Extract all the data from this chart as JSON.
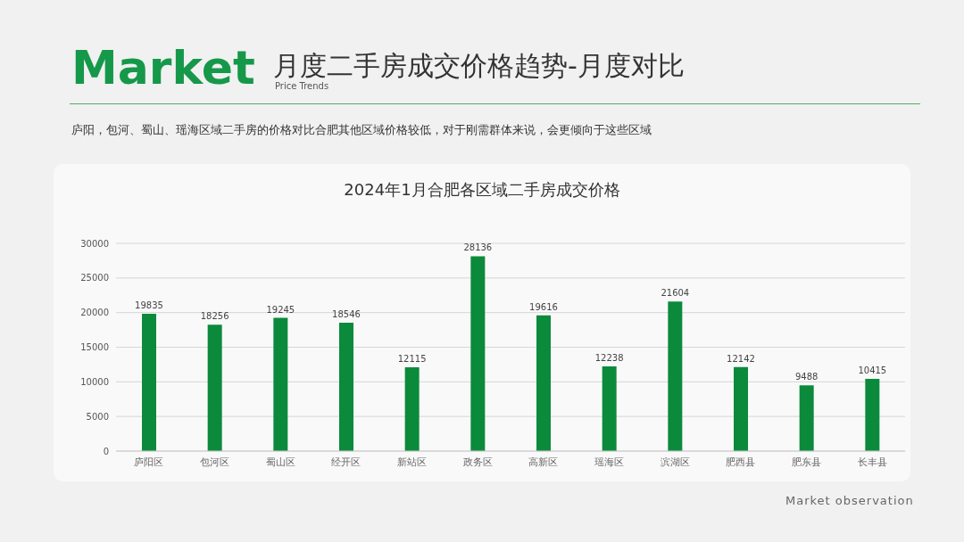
{
  "chart_data": {
    "type": "bar",
    "title": "2024年1月合肥各区域二手房成交价格",
    "categories": [
      "庐阳区",
      "包河区",
      "蜀山区",
      "经开区",
      "新站区",
      "政务区",
      "高新区",
      "瑶海区",
      "滨湖区",
      "肥西县",
      "肥东县",
      "长丰县"
    ],
    "values": [
      19835,
      18256,
      19245,
      18546,
      12115,
      28136,
      19616,
      12238,
      21604,
      12142,
      9488,
      10415
    ],
    "color": "#0b8a3c",
    "ylim": [
      0,
      30000
    ],
    "yticks": [
      0,
      5000,
      10000,
      15000,
      20000,
      25000,
      30000
    ],
    "grid": "y",
    "data_labels": true,
    "annotations": [
      "Market",
      "Price Trends",
      "月度二手房成交价格趋势-月度对比",
      "庐阳，包河、蜀山、瑶海区域二手房的价格对比合肥其他区域价格较低，对于刚需群体来说，会更倾向于这些区域",
      "Market observation"
    ]
  }
}
